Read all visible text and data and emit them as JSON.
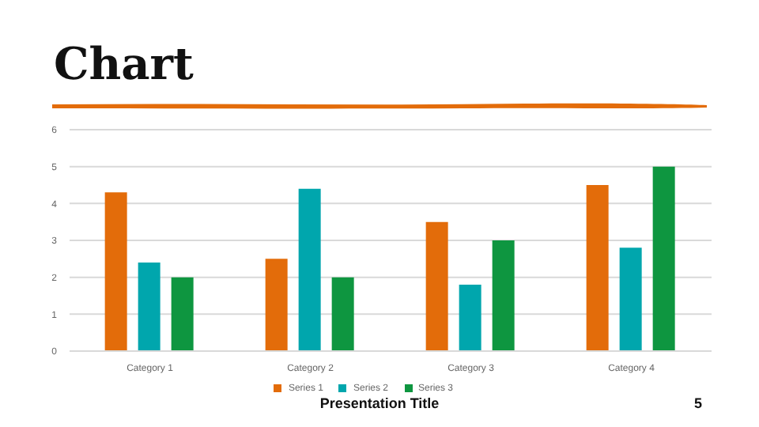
{
  "chart_data": {
    "type": "bar",
    "title": "Chart",
    "categories": [
      "Category 1",
      "Category 2",
      "Category 3",
      "Category 4"
    ],
    "series": [
      {
        "name": "Series 1",
        "color": "#e36c0a",
        "values": [
          4.3,
          2.5,
          3.5,
          4.5
        ]
      },
      {
        "name": "Series 2",
        "color": "#00a6ad",
        "values": [
          2.4,
          4.4,
          1.8,
          2.8
        ]
      },
      {
        "name": "Series 3",
        "color": "#0e9640",
        "values": [
          2,
          2,
          3,
          5
        ]
      }
    ],
    "ylim": [
      0,
      6
    ],
    "yticks": [
      0,
      1,
      2,
      3,
      4,
      5,
      6
    ],
    "grid": "y",
    "legend": "bottom",
    "annotations": [
      "Presentation Title",
      "5"
    ]
  }
}
